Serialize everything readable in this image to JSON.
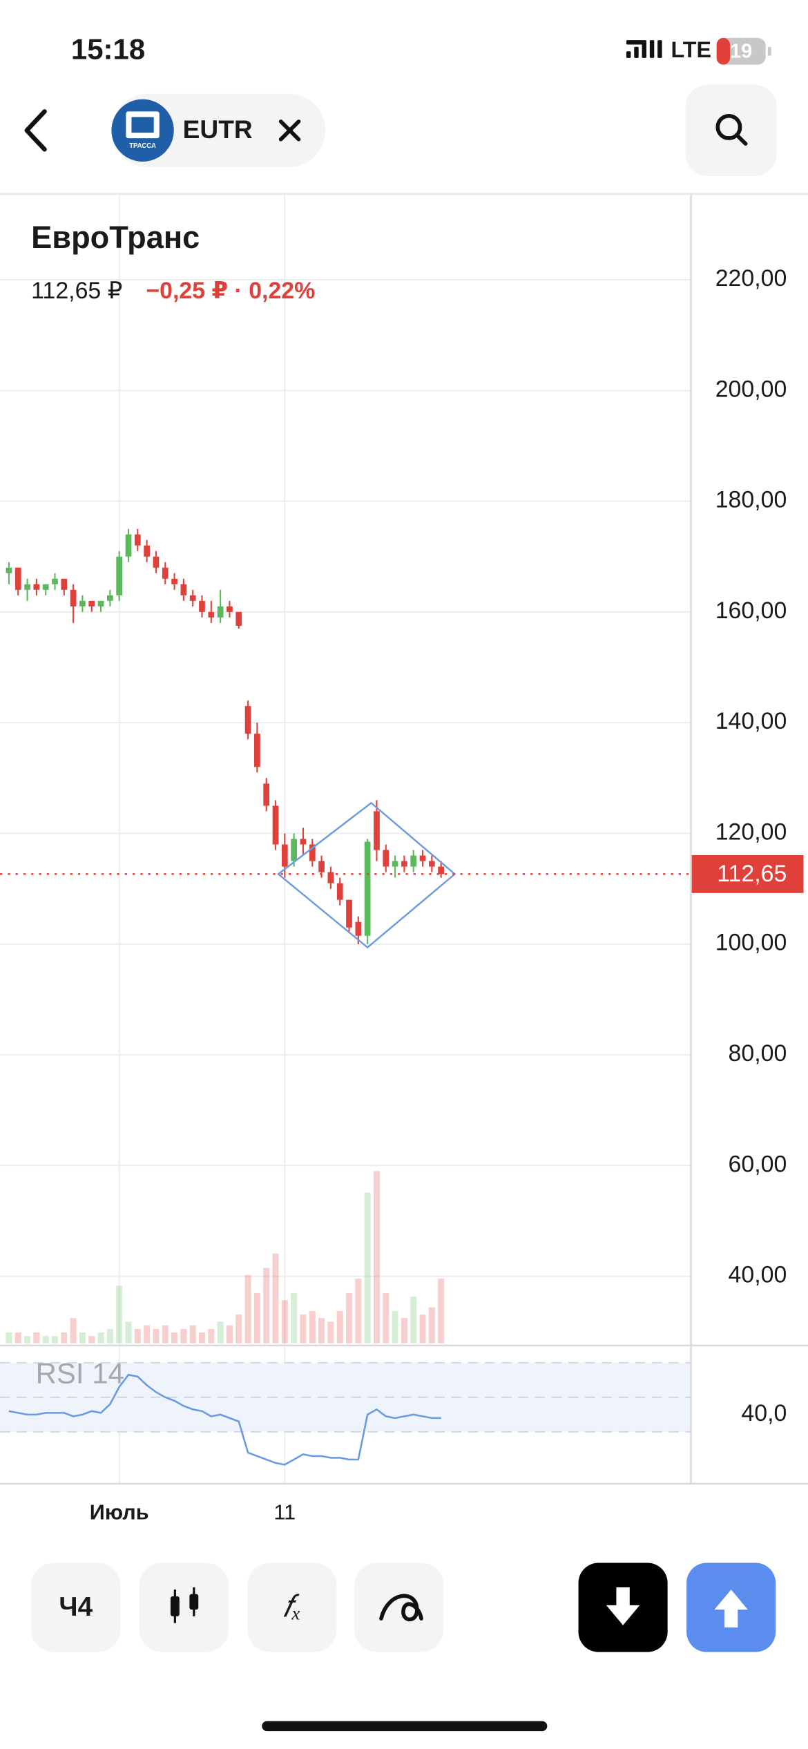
{
  "status_bar": {
    "time": "15:18",
    "network": "LTE",
    "battery": "19"
  },
  "header": {
    "ticker": "EUTR",
    "logo_text": "ТРАССА"
  },
  "instrument": {
    "name": "ЕвроТранс",
    "price": "112,65 ₽",
    "change": "−0,25 ₽ · 0,22%"
  },
  "chart_data": {
    "type": "candlestick",
    "categories": [
      null,
      null,
      null,
      null,
      null,
      null,
      null,
      null,
      null,
      null,
      null,
      null,
      "Июль",
      null,
      null,
      null,
      null,
      null,
      null,
      null,
      null,
      null,
      null,
      null,
      null,
      null,
      null,
      null,
      null,
      null,
      "11",
      null,
      null,
      null,
      null,
      null,
      null,
      null,
      null,
      null,
      null,
      null,
      null,
      null,
      null,
      null,
      null,
      null
    ],
    "open": [
      167,
      168,
      164,
      165,
      164,
      165,
      166,
      164,
      161,
      162,
      161,
      162,
      163,
      170,
      174,
      172,
      170,
      168,
      166,
      165,
      163,
      162,
      160,
      159,
      161,
      160,
      143,
      138,
      129,
      125,
      118,
      115,
      119,
      118,
      115,
      113,
      111,
      108,
      104,
      101.5,
      124,
      117,
      114,
      115,
      114,
      116,
      115,
      114
    ],
    "high": [
      169,
      168,
      166,
      166,
      165,
      167,
      166,
      165,
      163,
      162,
      162,
      164,
      171,
      175,
      175,
      173,
      171,
      169,
      167,
      166,
      164,
      163,
      162,
      164,
      162,
      160,
      144,
      140,
      130,
      126,
      120,
      120,
      121,
      119,
      116,
      114,
      112,
      108,
      105,
      119,
      126,
      118,
      116,
      116,
      117,
      117,
      116,
      115
    ],
    "low": [
      165,
      163,
      162,
      163,
      163,
      164,
      163,
      158,
      160,
      160,
      160,
      161,
      162,
      169,
      171,
      169,
      167,
      165,
      164,
      162,
      161,
      159,
      158,
      158,
      159,
      157,
      137,
      131,
      124,
      117,
      112,
      114,
      116,
      114,
      112,
      110,
      107,
      102,
      100,
      100,
      115,
      113,
      112,
      113,
      113,
      114,
      113,
      112
    ],
    "close": [
      168,
      164,
      165,
      164,
      165,
      166,
      164,
      161,
      162,
      161,
      162,
      163,
      170,
      174,
      172,
      170,
      168,
      166,
      165,
      163,
      162,
      160,
      159,
      161,
      160,
      157.5,
      138,
      132,
      125,
      118,
      114,
      119,
      118,
      115,
      113,
      111,
      108,
      103,
      101.5,
      118.5,
      117,
      114,
      115,
      114,
      116,
      115,
      114,
      112.65
    ],
    "up_color": "#5cb85c",
    "down_color": "#e0403a",
    "ylim": [
      27.9,
      235.3
    ],
    "yticks": [
      {
        "value": 40,
        "label": "40,00"
      },
      {
        "value": 60,
        "label": "60,00"
      },
      {
        "value": 80,
        "label": "80,00"
      },
      {
        "value": 100,
        "label": "100,00"
      },
      {
        "value": 120,
        "label": "120,00"
      },
      {
        "value": 140,
        "label": "140,00"
      },
      {
        "value": 160,
        "label": "160,00"
      },
      {
        "value": 180,
        "label": "180,00"
      },
      {
        "value": 200,
        "label": "200,00"
      },
      {
        "value": 220,
        "label": "220,00"
      }
    ],
    "grid": true,
    "last_price": {
      "value": 112.65,
      "label": "112,65"
    },
    "volume": {
      "values": [
        3,
        3,
        2,
        3,
        2,
        2,
        3,
        7,
        3,
        2,
        3,
        4,
        16,
        6,
        4,
        5,
        4,
        5,
        3,
        4,
        5,
        3,
        4,
        6,
        5,
        8,
        19,
        14,
        21,
        25,
        12,
        14,
        8,
        9,
        7,
        6,
        9,
        14,
        18,
        42,
        48,
        14,
        9,
        7,
        13,
        8,
        10,
        18
      ],
      "ylim": [
        0,
        320
      ]
    },
    "pattern": {
      "x": [
        29.3,
        39.4,
        48.5,
        39
      ],
      "y": [
        112.65,
        125.5,
        112.65,
        99.4
      ],
      "color": "#6a9be0"
    },
    "rsi": {
      "label": "RSI 14",
      "color": "#6a9be0",
      "ylim": [
        0,
        80
      ],
      "yticks": [
        {
          "value": 40,
          "label": "40,0"
        }
      ],
      "levels": [
        30,
        50,
        70
      ],
      "values": [
        42,
        41,
        40,
        40,
        41,
        41,
        41,
        39,
        40,
        42,
        41,
        46,
        56,
        63,
        62,
        57,
        53,
        50,
        48,
        45,
        43,
        42,
        39,
        40,
        38,
        36,
        18,
        16,
        14,
        12,
        11,
        14,
        17,
        16,
        16,
        15,
        15,
        14,
        14,
        40,
        43,
        39,
        38,
        39,
        40,
        39,
        38,
        38
      ]
    }
  },
  "toolbar": {
    "interval": "Ч4"
  }
}
